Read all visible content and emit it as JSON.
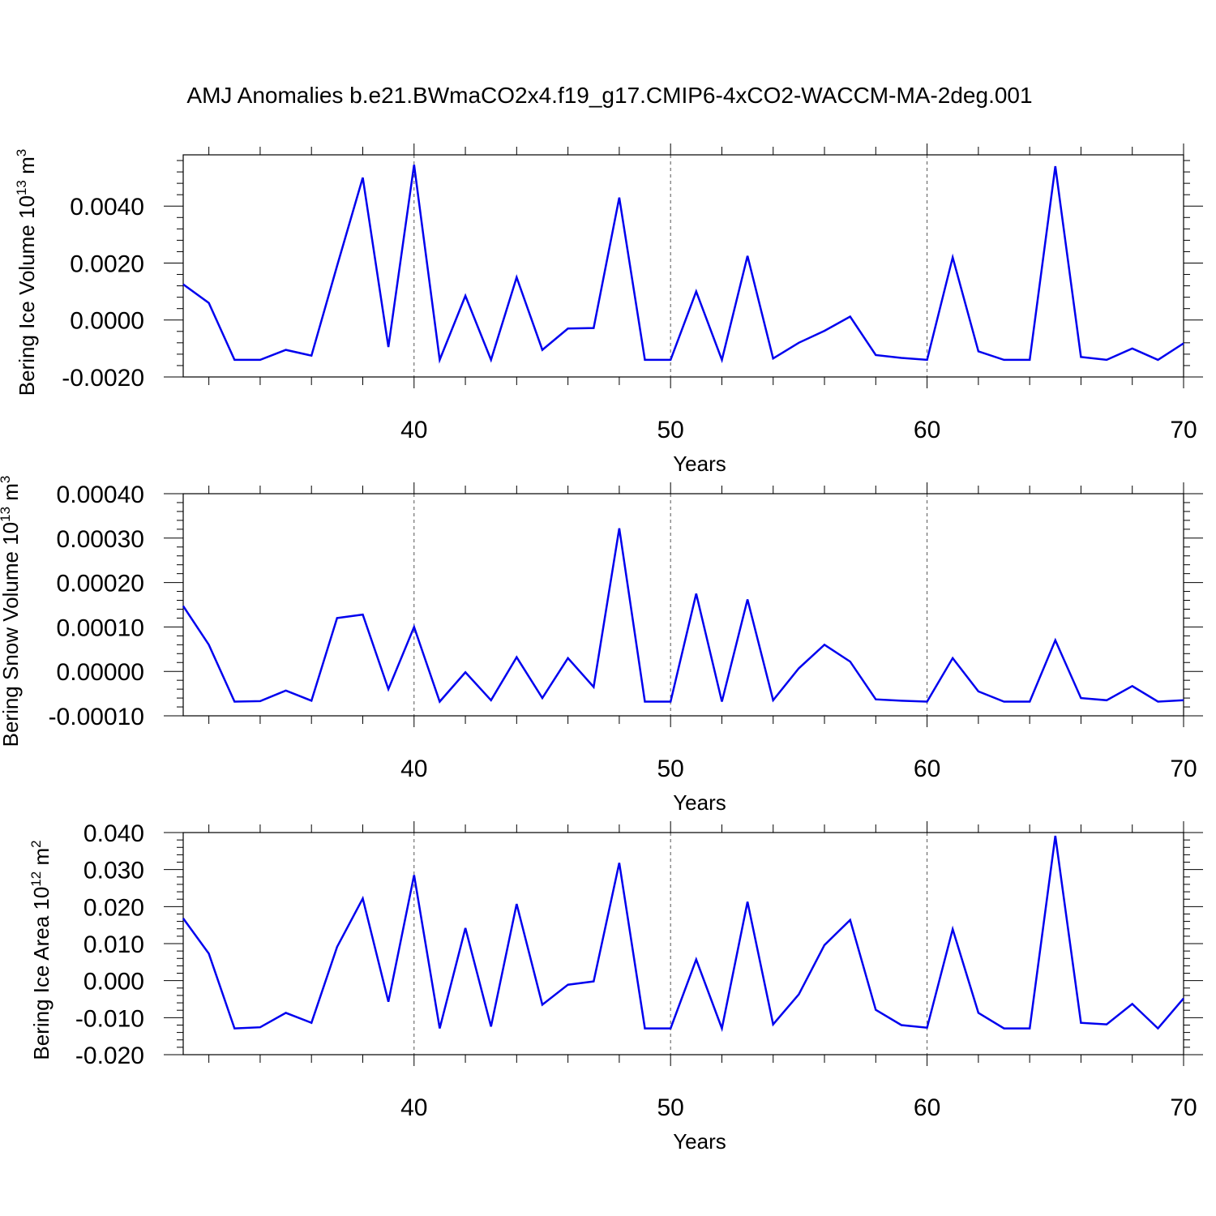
{
  "title": "AMJ Anomalies b.e21.BWmaCO2x4.f19_g17.CMIP6-4xCO2-WACCM-MA-2deg.001",
  "colors": {
    "series": "#0000ee",
    "axis": "#000000",
    "refline": "#555555"
  },
  "chart_data": [
    {
      "type": "line",
      "xlabel": "Years",
      "ylabel": {
        "main": "Bering Ice Volume 10",
        "exp": "13",
        "unit": " m",
        "unit_exp": "3"
      },
      "xlim": [
        31,
        70
      ],
      "ylim": [
        -0.002,
        0.0058
      ],
      "x_ticks": [
        40,
        50,
        60,
        70
      ],
      "x_tick_labels": [
        "40",
        "50",
        "60",
        "70"
      ],
      "y_ticks": [
        -0.002,
        0.0,
        0.002,
        0.004
      ],
      "y_tick_labels": [
        "-0.0020",
        "0.0000",
        "0.0020",
        "0.0040"
      ],
      "reference_lines_x": [
        40,
        50,
        60
      ],
      "x": [
        31,
        32,
        33,
        34,
        35,
        36,
        37,
        38,
        39,
        40,
        41,
        42,
        43,
        44,
        45,
        46,
        47,
        48,
        49,
        50,
        51,
        52,
        53,
        54,
        55,
        56,
        57,
        58,
        59,
        60,
        61,
        62,
        63,
        64,
        65,
        66,
        67,
        68,
        69,
        70
      ],
      "values": [
        0.00125,
        0.0006,
        -0.0014,
        -0.0014,
        -0.00105,
        -0.00125,
        0.0019,
        0.005,
        -0.00095,
        0.00545,
        -0.0014,
        0.00085,
        -0.0014,
        0.0015,
        -0.00105,
        -0.0003,
        -0.00028,
        0.0043,
        -0.0014,
        -0.0014,
        0.001,
        -0.0014,
        0.00225,
        -0.00135,
        -0.0008,
        -0.00038,
        0.00012,
        -0.00123,
        -0.00133,
        -0.0014,
        0.0022,
        -0.0011,
        -0.0014,
        -0.0014,
        0.0054,
        -0.0013,
        -0.0014,
        -0.001,
        -0.0014,
        -0.00082
      ]
    },
    {
      "type": "line",
      "xlabel": "Years",
      "ylabel": {
        "main": "Bering Snow Volume 10",
        "exp": "13",
        "unit": " m",
        "unit_exp": "3"
      },
      "xlim": [
        31,
        70
      ],
      "ylim": [
        -0.0001,
        0.0004
      ],
      "x_ticks": [
        40,
        50,
        60,
        70
      ],
      "x_tick_labels": [
        "40",
        "50",
        "60",
        "70"
      ],
      "y_ticks": [
        -0.0001,
        0.0,
        0.0001,
        0.0002,
        0.0003,
        0.0004
      ],
      "y_tick_labels": [
        "-0.00010",
        "0.00000",
        "0.00010",
        "0.00020",
        "0.00030",
        "0.00040"
      ],
      "reference_lines_x": [
        40,
        50,
        60
      ],
      "x": [
        31,
        32,
        33,
        34,
        35,
        36,
        37,
        38,
        39,
        40,
        41,
        42,
        43,
        44,
        45,
        46,
        47,
        48,
        49,
        50,
        51,
        52,
        53,
        54,
        55,
        56,
        57,
        58,
        59,
        60,
        61,
        62,
        63,
        64,
        65,
        66,
        67,
        68,
        69,
        70
      ],
      "values": [
        0.000147,
        6e-05,
        -6.8e-05,
        -6.7e-05,
        -4.3e-05,
        -6.6e-05,
        0.00012,
        0.000128,
        -4e-05,
        0.0001,
        -6.8e-05,
        -2e-06,
        -6.5e-05,
        3.2e-05,
        -6e-05,
        3e-05,
        -3.5e-05,
        0.000322,
        -6.8e-05,
        -6.8e-05,
        0.000175,
        -6.8e-05,
        0.000162,
        -6.5e-05,
        7e-06,
        6e-05,
        2.2e-05,
        -6.3e-05,
        -6.6e-05,
        -6.8e-05,
        3e-05,
        -4.5e-05,
        -6.8e-05,
        -6.8e-05,
        7e-05,
        -6e-05,
        -6.5e-05,
        -3.3e-05,
        -6.8e-05,
        -6.5e-05
      ]
    },
    {
      "type": "line",
      "xlabel": "Years",
      "ylabel": {
        "main": "Bering Ice Area 10",
        "exp": "12",
        "unit": " m",
        "unit_exp": "2"
      },
      "xlim": [
        31,
        70
      ],
      "ylim": [
        -0.02,
        0.04
      ],
      "x_ticks": [
        40,
        50,
        60,
        70
      ],
      "x_tick_labels": [
        "40",
        "50",
        "60",
        "70"
      ],
      "y_ticks": [
        -0.02,
        -0.01,
        0.0,
        0.01,
        0.02,
        0.03,
        0.04
      ],
      "y_tick_labels": [
        "-0.020",
        "-0.010",
        "0.000",
        "0.010",
        "0.020",
        "0.030",
        "0.040"
      ],
      "reference_lines_x": [
        40,
        50,
        60
      ],
      "x": [
        31,
        32,
        33,
        34,
        35,
        36,
        37,
        38,
        39,
        40,
        41,
        42,
        43,
        44,
        45,
        46,
        47,
        48,
        49,
        50,
        51,
        52,
        53,
        54,
        55,
        56,
        57,
        58,
        59,
        60,
        61,
        62,
        63,
        64,
        65,
        66,
        67,
        68,
        69,
        70
      ],
      "values": [
        0.0168,
        0.0073,
        -0.0129,
        -0.0126,
        -0.0087,
        -0.0114,
        0.0091,
        0.0222,
        -0.0057,
        0.0285,
        -0.0129,
        0.0142,
        -0.0124,
        0.0207,
        -0.0065,
        -0.0011,
        -0.0002,
        0.0318,
        -0.0129,
        -0.0129,
        0.0057,
        -0.0129,
        0.0213,
        -0.0118,
        -0.0037,
        0.0096,
        0.0164,
        -0.0079,
        -0.012,
        -0.0127,
        0.0139,
        -0.0087,
        -0.0129,
        -0.0129,
        0.0391,
        -0.0114,
        -0.0118,
        -0.0063,
        -0.0129,
        -0.0048
      ]
    }
  ]
}
